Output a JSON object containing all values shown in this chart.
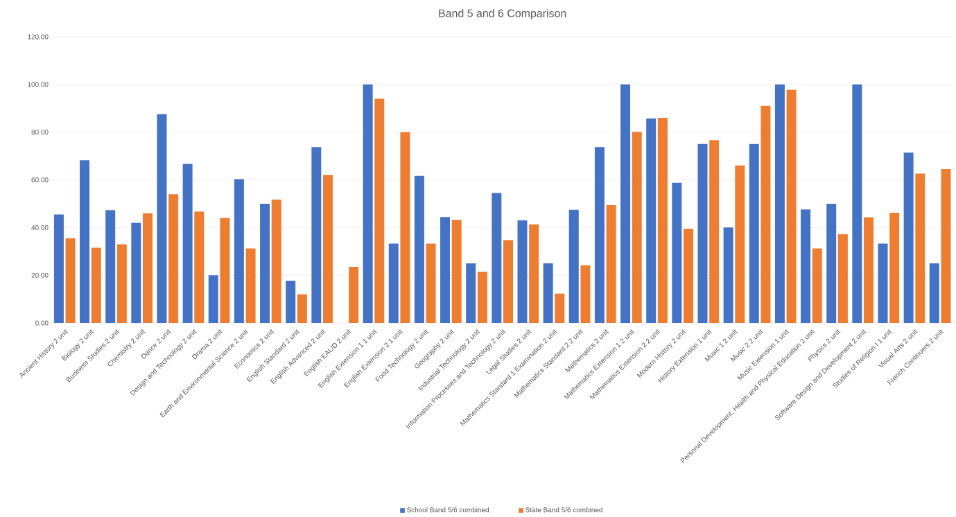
{
  "chart_data": {
    "type": "bar",
    "title": "Band 5 and 6 Comparison",
    "categories": [
      "Ancient History 2 unit",
      "Biology 2 unit",
      "Business Studies 2 unit",
      "Chemistry 2 unit",
      "Dance 2 unit",
      "Design and Technology 2 unit",
      "Drama 2 unit",
      "Earth and Environmental Science 2 unit",
      "Economics 2 unit",
      "English Standard 2 unit",
      "English Advanced 2 unit",
      "English EAL/D 2 unit",
      "English Extension 1 1 unit",
      "English Extension 2 1 unit",
      "Food Technology 2 unit",
      "Geography 2 unit",
      "Industrial Technology 2 unit",
      "Information Processes and Technology 2 unit",
      "Legal Studies 2 unit",
      "Mathematics Standard 1 Examination 2 unit",
      "Mathematics Standard 2 2 unit",
      "Mathematics 2 unit",
      "Mathematics Extension 1 2 unit",
      "Mathematics Extension 2 2 unit",
      "Modern History 2 unit",
      "History Extension 1 unit",
      "Music 1 2 unit",
      "Music 2 2 unit",
      "Music Extension 1 unit",
      "Personal Development, Health and Physical Education 2 unit",
      "Physics 2 unit",
      "Software Design and Development 2 unit",
      "Studies of Religion I 1 unit",
      "Visual Arts 2 unit",
      "French Continuers 2 unit"
    ],
    "series": [
      {
        "name": "School Band 5/6 combined",
        "color": "#4472c4",
        "values": [
          45.5,
          68.2,
          47.3,
          42,
          87.5,
          66.7,
          20,
          60.3,
          50,
          17.7,
          73.7,
          null,
          100,
          33.3,
          61.7,
          44.4,
          25,
          54.5,
          43,
          25,
          47.4,
          73.7,
          100,
          85.7,
          58.8,
          75,
          40,
          75,
          100,
          47.6,
          50,
          100,
          33.3,
          71.4,
          25
        ]
      },
      {
        "name": "State Band 5/6 combined",
        "color": "#ed7d31",
        "values": [
          35.5,
          31.5,
          33,
          46,
          54,
          46.7,
          44,
          31.2,
          51.7,
          12,
          62,
          23.5,
          94,
          80,
          33.3,
          43.2,
          21.5,
          34.7,
          41.3,
          12.3,
          24.2,
          49.4,
          80.1,
          86,
          39.5,
          76.6,
          66,
          91,
          97.8,
          31.2,
          37.2,
          44.3,
          46.2,
          62.6,
          64.5
        ]
      }
    ],
    "ylim": [
      0,
      120
    ],
    "yticks": [
      {
        "value": 0,
        "label": "0.00"
      },
      {
        "value": 20,
        "label": "20.00"
      },
      {
        "value": 40,
        "label": "40.00"
      },
      {
        "value": 60,
        "label": "60.00"
      },
      {
        "value": 80,
        "label": "80.00"
      },
      {
        "value": 100,
        "label": "100.00"
      },
      {
        "value": 120,
        "label": "120.00"
      }
    ],
    "grid": "y",
    "legend": "bottom"
  }
}
